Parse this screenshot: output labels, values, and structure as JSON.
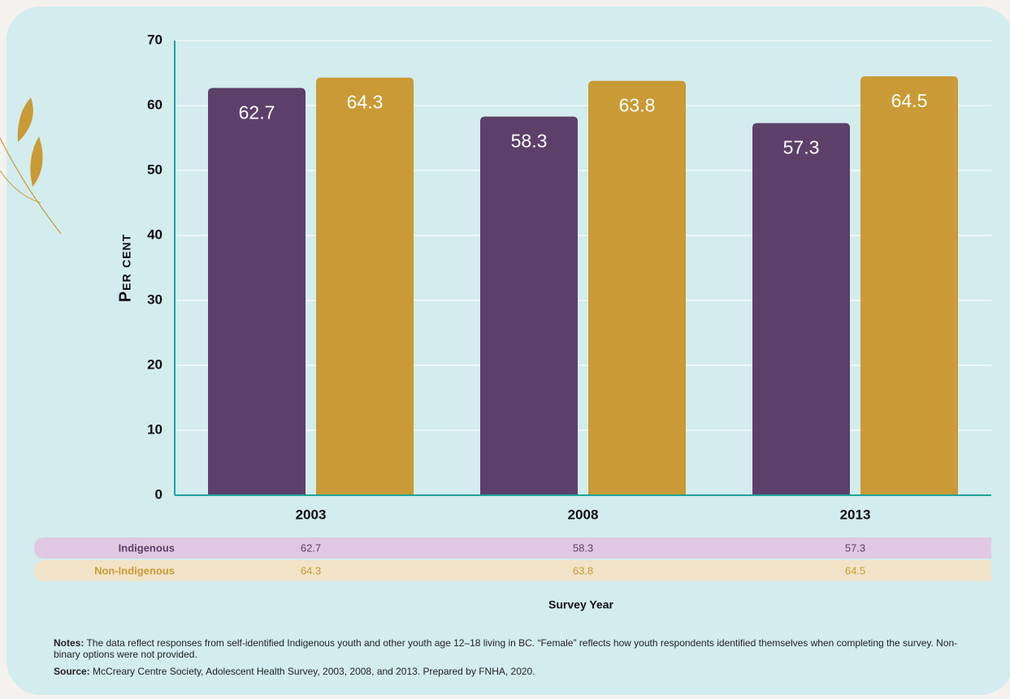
{
  "chart_data": {
    "type": "bar",
    "categories": [
      "2003",
      "2008",
      "2013"
    ],
    "series": [
      {
        "name": "Indigenous",
        "color": "#5c4069",
        "values": [
          62.7,
          58.3,
          57.3
        ]
      },
      {
        "name": "Non-Indigenous",
        "color": "#c99a35",
        "values": [
          64.3,
          63.8,
          64.5
        ]
      }
    ],
    "y_label": "Per cent",
    "x_label": "Survey Year",
    "ylim": [
      0,
      70
    ],
    "yticks": [
      0,
      10,
      20,
      30,
      40,
      50,
      60,
      70
    ],
    "grid": true,
    "notes": {
      "label": "Notes:",
      "text": "The data reflect responses from self-identified Indigenous youth and other youth age 12–18 living in BC. “Female” reflects how youth respondents identified themselves when completing the survey. Non-binary options were not provided."
    },
    "source": {
      "label": "Source:",
      "text": "McCreary Centre Society, Adolescent Health Survey, 2003, 2008, and 2013. Prepared by FNHA, 2020."
    }
  }
}
